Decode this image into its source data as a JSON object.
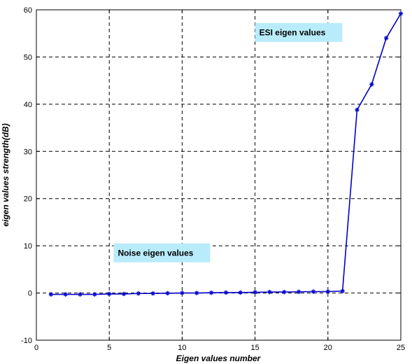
{
  "chart_data": {
    "type": "line",
    "title": "",
    "xlabel": "Eigen values number",
    "ylabel": "eigen values strength(dB)",
    "xlim": [
      0,
      25
    ],
    "ylim": [
      -10,
      60
    ],
    "xticks": [
      0,
      5,
      10,
      15,
      20,
      25
    ],
    "yticks": [
      -10,
      0,
      10,
      20,
      30,
      40,
      50,
      60
    ],
    "grid": true,
    "grid_style": "dashed",
    "line_color": "#0000cc",
    "marker": "star",
    "annotation_bg": "#b9ecfb",
    "series": [
      {
        "x": [
          1,
          2,
          3,
          4,
          5,
          6,
          7,
          8,
          9,
          10,
          11,
          12,
          13,
          14,
          15,
          16,
          17,
          18,
          19,
          20,
          21,
          22,
          23,
          24,
          25
        ],
        "y": [
          -0.3,
          -0.3,
          -0.3,
          -0.3,
          -0.2,
          -0.2,
          -0.1,
          -0.1,
          -0.05,
          0.0,
          0.0,
          0.05,
          0.1,
          0.1,
          0.15,
          0.2,
          0.2,
          0.25,
          0.3,
          0.3,
          0.4,
          38.8,
          44.2,
          54.0,
          59.2
        ]
      }
    ],
    "annotations": [
      {
        "text": "ESI eigen values",
        "x": 15.0,
        "y": 55.2
      },
      {
        "text": "Noise eigen values",
        "x": 5.3,
        "y": 8.5
      }
    ]
  }
}
